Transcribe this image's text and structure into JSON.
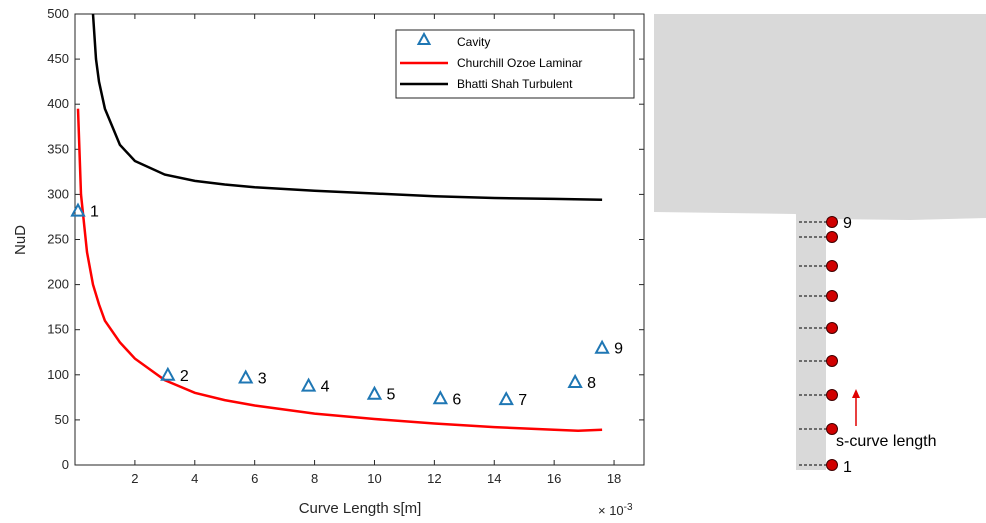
{
  "chart_data": {
    "type": "scatter",
    "xlabel": "Curve Length s[m]",
    "ylabel": "NuD",
    "x_scale_label": "× 10",
    "x_scale_exponent": "-3",
    "xlim": [
      0,
      0.019
    ],
    "ylim": [
      0,
      500
    ],
    "xticks": [
      "2",
      "4",
      "6",
      "8",
      "10",
      "12",
      "14",
      "16",
      "18"
    ],
    "yticks": [
      "0",
      "50",
      "100",
      "150",
      "200",
      "250",
      "300",
      "350",
      "400",
      "450",
      "500"
    ],
    "grid": false,
    "legend_position": "top-right",
    "colors": {
      "cavity": "#1f77b4",
      "laminar": "#ff0000",
      "turbulent": "#000000",
      "dot": "#d00000",
      "geometry": "#d9d9d9"
    },
    "series": [
      {
        "name": "Cavity",
        "type": "scatter",
        "marker": "triangle",
        "points": [
          {
            "x": 0.0001,
            "y": 282,
            "label": "1"
          },
          {
            "x": 0.0031,
            "y": 100,
            "label": "2"
          },
          {
            "x": 0.0057,
            "y": 97,
            "label": "3"
          },
          {
            "x": 0.0078,
            "y": 88,
            "label": "4"
          },
          {
            "x": 0.01,
            "y": 79,
            "label": "5"
          },
          {
            "x": 0.0122,
            "y": 74,
            "label": "6"
          },
          {
            "x": 0.0144,
            "y": 73,
            "label": "7"
          },
          {
            "x": 0.0167,
            "y": 92,
            "label": "8"
          },
          {
            "x": 0.0176,
            "y": 130,
            "label": "9"
          }
        ]
      },
      {
        "name": "Churchill Ozoe Laminar",
        "type": "line",
        "x": [
          0.0001,
          0.0002,
          0.0004,
          0.0006,
          0.0008,
          0.001,
          0.0015,
          0.002,
          0.003,
          0.004,
          0.005,
          0.006,
          0.008,
          0.01,
          0.012,
          0.014,
          0.016,
          0.0168,
          0.0176
        ],
        "y": [
          395,
          300,
          236,
          200,
          178,
          160,
          136,
          118,
          94,
          80,
          72,
          66,
          57,
          51,
          46,
          42,
          39,
          38,
          39
        ]
      },
      {
        "name": "Bhatti Shah Turbulent",
        "type": "line",
        "x": [
          0.0006,
          0.0007,
          0.0008,
          0.001,
          0.0015,
          0.002,
          0.003,
          0.004,
          0.005,
          0.006,
          0.008,
          0.01,
          0.012,
          0.014,
          0.016,
          0.0176
        ],
        "y": [
          500,
          450,
          425,
          395,
          355,
          337,
          322,
          315,
          311,
          308,
          304,
          301,
          298,
          296,
          295,
          294
        ]
      }
    ]
  },
  "schematic": {
    "curve_label": "s-curve length",
    "station_labels": [
      "1",
      "9"
    ]
  }
}
